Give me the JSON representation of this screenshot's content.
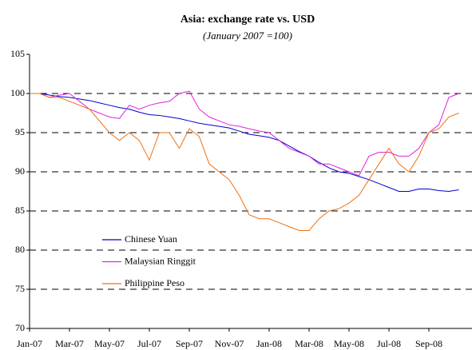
{
  "chart_data": {
    "type": "line",
    "title": "Asia: exchange rate vs. USD",
    "subtitle": "(January 2007 =100)",
    "categories": [
      "Jan-07",
      null,
      null,
      null,
      "Mar-07",
      null,
      null,
      null,
      "May-07",
      null,
      null,
      null,
      "Jul-07",
      null,
      null,
      null,
      "Sep-07",
      null,
      null,
      null,
      "Nov-07",
      null,
      null,
      null,
      "Jan-08",
      null,
      null,
      null,
      "Mar-08",
      null,
      null,
      null,
      "May-08",
      null,
      null,
      null,
      "Jul-08",
      null,
      null,
      null,
      "Sep-08",
      null,
      null,
      null
    ],
    "series": [
      {
        "name": "Chinese Yuan",
        "color": "#0000cc",
        "values": [
          100,
          100,
          99.8,
          99.6,
          99.5,
          99.3,
          99.1,
          98.8,
          98.5,
          98.2,
          98,
          97.6,
          97.3,
          97.2,
          97,
          96.8,
          96.5,
          96.2,
          96,
          95.8,
          95.6,
          95.2,
          94.8,
          94.6,
          94.4,
          94,
          93.3,
          92.6,
          92,
          91.2,
          90.5,
          90,
          89.8,
          89.4,
          89,
          88.5,
          88,
          87.5,
          87.5,
          87.8,
          87.8,
          87.6,
          87.5,
          87.7
        ]
      },
      {
        "name": "Malaysian Ringgit",
        "color": "#e020e0",
        "values": [
          100,
          100,
          99.5,
          99.8,
          100,
          99,
          98,
          97.5,
          97,
          96.8,
          98.5,
          98,
          98.5,
          98.8,
          99,
          100,
          100.3,
          98,
          97,
          96.5,
          96,
          95.8,
          95.5,
          95.2,
          95,
          94,
          93,
          92.5,
          92,
          91,
          91,
          90.5,
          90,
          89.5,
          92,
          92.5,
          92.5,
          92,
          92,
          93,
          95,
          96,
          99.5,
          100
        ]
      },
      {
        "name": "Philippine Peso",
        "color": "#f07010",
        "values": [
          100,
          100,
          99.5,
          99.5,
          99,
          98.5,
          98,
          96.5,
          95,
          94,
          95,
          94,
          91.5,
          95,
          95,
          93,
          95.5,
          94.5,
          91,
          90,
          89,
          87,
          84.5,
          84,
          84,
          83.5,
          83,
          82.5,
          82.5,
          84,
          85,
          85.3,
          86,
          87,
          89,
          91,
          93,
          91,
          90,
          92,
          95,
          95.5,
          97,
          97.5
        ]
      }
    ],
    "ylim": [
      70,
      105
    ],
    "yticks": [
      70,
      75,
      80,
      85,
      90,
      95,
      100,
      105
    ],
    "grid": true
  }
}
